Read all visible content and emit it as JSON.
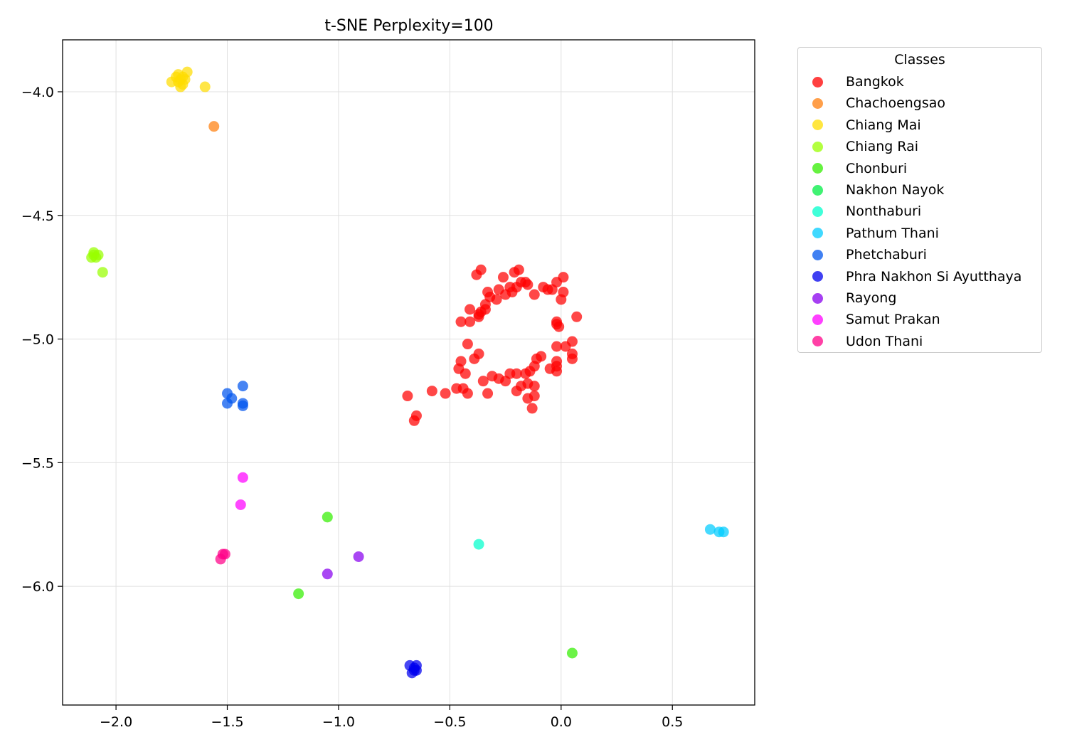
{
  "chart_data": {
    "type": "scatter",
    "title": "t-SNE Perplexity=100",
    "xlabel": "",
    "ylabel": "",
    "xlim": [
      -2.24,
      0.87
    ],
    "ylim": [
      -6.48,
      -3.79
    ],
    "xticks": [
      -2.0,
      -1.5,
      -1.0,
      -0.5,
      0.0,
      0.5
    ],
    "xtick_labels": [
      "−2.0",
      "−1.5",
      "−1.0",
      "−0.5",
      "0.0",
      "0.5"
    ],
    "yticks": [
      -4.0,
      -4.5,
      -5.0,
      -5.5,
      -6.0
    ],
    "ytick_labels": [
      "−4.0",
      "−4.5",
      "−5.0",
      "−5.5",
      "−6.0"
    ],
    "grid": true,
    "legend": {
      "title": "Classes",
      "placement": "outside right, top"
    },
    "series": [
      {
        "name": "Bangkok",
        "color": "#ff0000",
        "points": [
          [
            -0.38,
            -4.74
          ],
          [
            -0.36,
            -4.72
          ],
          [
            -0.26,
            -4.75
          ],
          [
            -0.21,
            -4.73
          ],
          [
            -0.19,
            -4.72
          ],
          [
            -0.02,
            -4.77
          ],
          [
            0.01,
            -4.75
          ],
          [
            -0.33,
            -4.81
          ],
          [
            -0.32,
            -4.83
          ],
          [
            -0.29,
            -4.84
          ],
          [
            -0.28,
            -4.8
          ],
          [
            -0.25,
            -4.82
          ],
          [
            -0.23,
            -4.79
          ],
          [
            -0.22,
            -4.81
          ],
          [
            -0.2,
            -4.79
          ],
          [
            -0.18,
            -4.77
          ],
          [
            -0.16,
            -4.77
          ],
          [
            -0.15,
            -4.78
          ],
          [
            -0.12,
            -4.82
          ],
          [
            -0.08,
            -4.79
          ],
          [
            -0.06,
            -4.8
          ],
          [
            -0.04,
            -4.8
          ],
          [
            0.01,
            -4.81
          ],
          [
            0.0,
            -4.84
          ],
          [
            -0.41,
            -4.88
          ],
          [
            -0.37,
            -4.9
          ],
          [
            -0.36,
            -4.89
          ],
          [
            -0.34,
            -4.88
          ],
          [
            -0.34,
            -4.86
          ],
          [
            -0.37,
            -4.91
          ],
          [
            -0.41,
            -4.93
          ],
          [
            -0.45,
            -4.93
          ],
          [
            -0.02,
            -4.93
          ],
          [
            -0.01,
            -4.95
          ],
          [
            -0.02,
            -4.94
          ],
          [
            0.07,
            -4.91
          ],
          [
            -0.42,
            -5.02
          ],
          [
            -0.37,
            -5.06
          ],
          [
            -0.39,
            -5.08
          ],
          [
            -0.45,
            -5.09
          ],
          [
            -0.46,
            -5.12
          ],
          [
            -0.43,
            -5.14
          ],
          [
            -0.11,
            -5.08
          ],
          [
            -0.09,
            -5.07
          ],
          [
            -0.12,
            -5.11
          ],
          [
            -0.14,
            -5.13
          ],
          [
            -0.05,
            -5.12
          ],
          [
            -0.02,
            -5.09
          ],
          [
            -0.02,
            -5.11
          ],
          [
            -0.02,
            -5.13
          ],
          [
            -0.02,
            -5.03
          ],
          [
            0.02,
            -5.03
          ],
          [
            0.05,
            -5.01
          ],
          [
            0.05,
            -5.06
          ],
          [
            0.05,
            -5.08
          ],
          [
            -0.35,
            -5.17
          ],
          [
            -0.31,
            -5.15
          ],
          [
            -0.28,
            -5.16
          ],
          [
            -0.25,
            -5.17
          ],
          [
            -0.23,
            -5.14
          ],
          [
            -0.2,
            -5.14
          ],
          [
            -0.18,
            -5.19
          ],
          [
            -0.16,
            -5.14
          ],
          [
            -0.15,
            -5.18
          ],
          [
            -0.12,
            -5.19
          ],
          [
            -0.12,
            -5.23
          ],
          [
            -0.15,
            -5.24
          ],
          [
            -0.13,
            -5.28
          ],
          [
            -0.2,
            -5.21
          ],
          [
            -0.33,
            -5.22
          ],
          [
            -0.47,
            -5.2
          ],
          [
            -0.44,
            -5.2
          ],
          [
            -0.42,
            -5.22
          ],
          [
            -0.52,
            -5.22
          ],
          [
            -0.58,
            -5.21
          ],
          [
            -0.69,
            -5.23
          ],
          [
            -0.65,
            -5.31
          ],
          [
            -0.66,
            -5.33
          ]
        ]
      },
      {
        "name": "Chachoengsao",
        "color": "#ff7f0e",
        "points": [
          [
            -1.56,
            -4.14
          ]
        ]
      },
      {
        "name": "Chiang Mai",
        "color": "#ffdd00",
        "points": [
          [
            -1.75,
            -3.96
          ],
          [
            -1.73,
            -3.94
          ],
          [
            -1.72,
            -3.93
          ],
          [
            -1.71,
            -3.95
          ],
          [
            -1.7,
            -3.94
          ],
          [
            -1.69,
            -3.95
          ],
          [
            -1.71,
            -3.98
          ],
          [
            -1.7,
            -3.97
          ],
          [
            -1.68,
            -3.92
          ],
          [
            -1.72,
            -3.96
          ],
          [
            -1.6,
            -3.98
          ]
        ]
      },
      {
        "name": "Chiang Rai",
        "color": "#99ff00",
        "points": [
          [
            -2.1,
            -4.65
          ],
          [
            -2.11,
            -4.67
          ],
          [
            -2.09,
            -4.67
          ],
          [
            -2.08,
            -4.66
          ],
          [
            -2.1,
            -4.66
          ],
          [
            -2.06,
            -4.73
          ]
        ]
      },
      {
        "name": "Chonburi",
        "color": "#33ee00",
        "points": [
          [
            -1.05,
            -5.72
          ],
          [
            -1.18,
            -6.03
          ],
          [
            0.05,
            -6.27
          ]
        ]
      },
      {
        "name": "Nakhon Nayok",
        "color": "#00ee44",
        "points": []
      },
      {
        "name": "Nonthaburi",
        "color": "#00ffcc",
        "points": [
          [
            -0.37,
            -5.83
          ]
        ]
      },
      {
        "name": "Pathum Thani",
        "color": "#00ccff",
        "points": [
          [
            0.67,
            -5.77
          ],
          [
            0.71,
            -5.78
          ],
          [
            0.73,
            -5.78
          ]
        ]
      },
      {
        "name": "Phetchaburi",
        "color": "#0055ee",
        "points": [
          [
            -1.43,
            -5.19
          ],
          [
            -1.5,
            -5.22
          ],
          [
            -1.48,
            -5.24
          ],
          [
            -1.5,
            -5.26
          ],
          [
            -1.43,
            -5.26
          ],
          [
            -1.43,
            -5.27
          ]
        ]
      },
      {
        "name": "Phra Nakhon Si Ayutthaya",
        "color": "#0000ee",
        "points": [
          [
            -0.68,
            -6.32
          ],
          [
            -0.66,
            -6.33
          ],
          [
            -0.65,
            -6.32
          ],
          [
            -0.65,
            -6.34
          ],
          [
            -0.67,
            -6.35
          ],
          [
            -0.66,
            -6.34
          ]
        ]
      },
      {
        "name": "Rayong",
        "color": "#8800ee",
        "points": [
          [
            -0.91,
            -5.88
          ],
          [
            -1.05,
            -5.95
          ]
        ]
      },
      {
        "name": "Samut Prakan",
        "color": "#ff00ff",
        "points": [
          [
            -1.43,
            -5.56
          ],
          [
            -1.44,
            -5.67
          ]
        ]
      },
      {
        "name": "Udon Thani",
        "color": "#ff0088",
        "points": [
          [
            -1.52,
            -5.87
          ],
          [
            -1.51,
            -5.87
          ],
          [
            -1.53,
            -5.89
          ]
        ]
      }
    ]
  }
}
